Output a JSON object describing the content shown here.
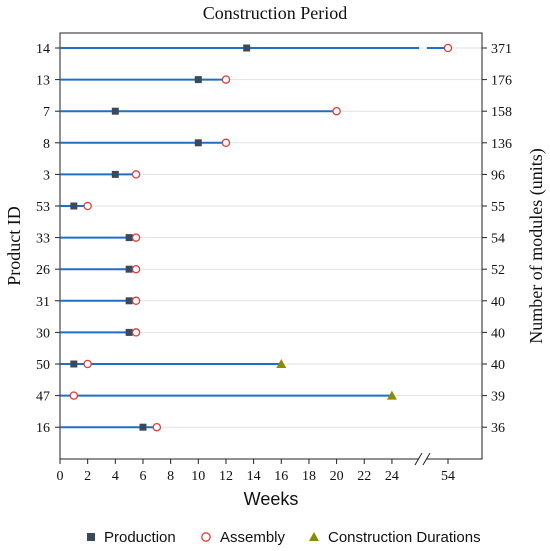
{
  "chart_data": {
    "type": "dumbbell",
    "title": "Construction Period",
    "xlabel": "Weeks",
    "ylabel_left": "Product ID",
    "ylabel_right": "Number of modules (units)",
    "x_ticks": [
      "0",
      "2",
      "4",
      "6",
      "8",
      "10",
      "12",
      "14",
      "16",
      "18",
      "20",
      "22",
      "24",
      "54"
    ],
    "x_axis_break": "between 24 and 54",
    "xlim": [
      0,
      54
    ],
    "grid": "horizontal",
    "legend_position": "bottom",
    "colors": {
      "line": "#1f6fc5",
      "production": "#3b4a5a",
      "assembly": "#e23c3c",
      "construction": "#8c8c00"
    },
    "legend": [
      {
        "key": "production",
        "label": "Production"
      },
      {
        "key": "assembly",
        "label": "Assembly"
      },
      {
        "key": "construction",
        "label": "Construction Durations"
      }
    ],
    "rows": [
      {
        "product_id": "14",
        "modules": "371",
        "line_end": 54,
        "production": 13.5,
        "assembly": 54,
        "construction": null
      },
      {
        "product_id": "13",
        "modules": "176",
        "line_end": 12,
        "production": 10,
        "assembly": 12,
        "construction": null
      },
      {
        "product_id": "7",
        "modules": "158",
        "line_end": 20,
        "production": 4,
        "assembly": 20,
        "construction": null
      },
      {
        "product_id": "8",
        "modules": "136",
        "line_end": 12,
        "production": 10,
        "assembly": 12,
        "construction": null
      },
      {
        "product_id": "3",
        "modules": "96",
        "line_end": 5.5,
        "production": 4,
        "assembly": 5.5,
        "construction": null
      },
      {
        "product_id": "53",
        "modules": "55",
        "line_end": 2,
        "production": 1,
        "assembly": 2,
        "construction": null
      },
      {
        "product_id": "33",
        "modules": "54",
        "line_end": 5.5,
        "production": 5,
        "assembly": 5.5,
        "construction": null
      },
      {
        "product_id": "26",
        "modules": "52",
        "line_end": 5.5,
        "production": 5,
        "assembly": 5.5,
        "construction": null
      },
      {
        "product_id": "31",
        "modules": "40",
        "line_end": 5.5,
        "production": 5,
        "assembly": 5.5,
        "construction": null
      },
      {
        "product_id": "30",
        "modules": "40",
        "line_end": 5.5,
        "production": 5,
        "assembly": 5.5,
        "construction": null
      },
      {
        "product_id": "50",
        "modules": "40",
        "line_end": 16,
        "production": 1,
        "assembly": 2,
        "construction": 16
      },
      {
        "product_id": "47",
        "modules": "39",
        "line_end": 24,
        "production": null,
        "assembly": 1,
        "construction": 24
      },
      {
        "product_id": "16",
        "modules": "36",
        "line_end": 7,
        "production": 6,
        "assembly": 7,
        "construction": null
      }
    ]
  }
}
